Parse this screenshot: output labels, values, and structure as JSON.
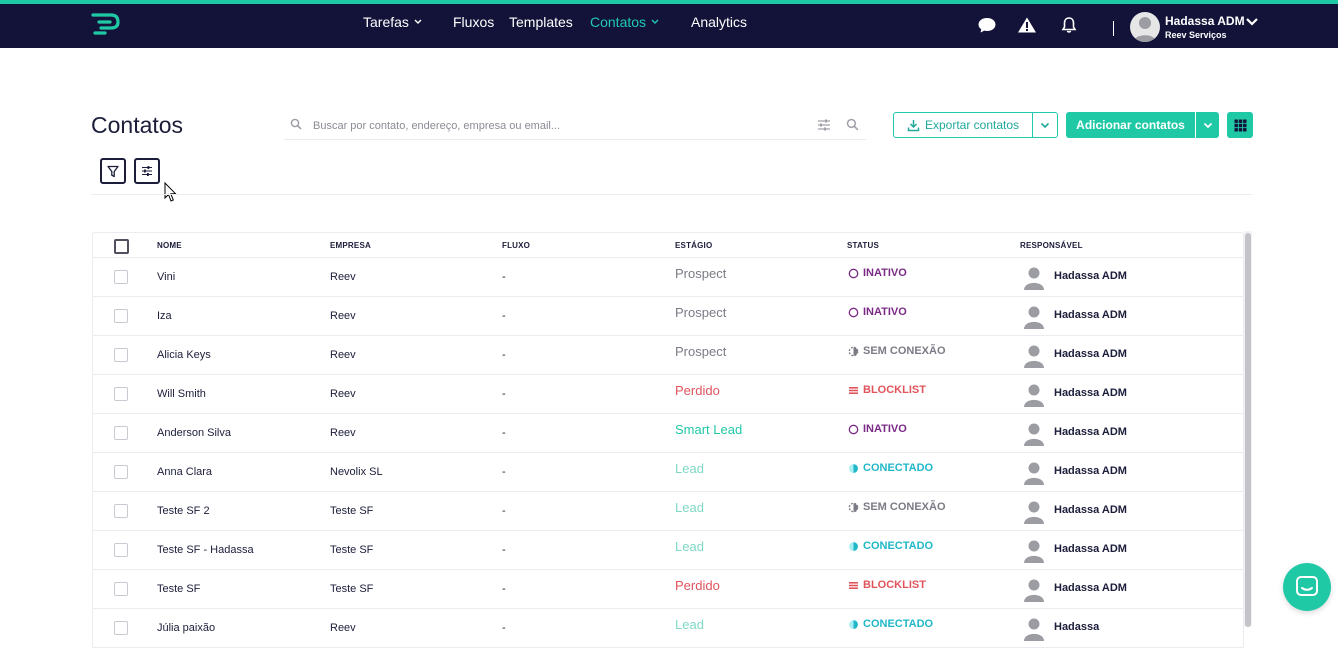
{
  "nav": {
    "items": [
      {
        "label": "Tarefas",
        "has_caret": true,
        "active": false
      },
      {
        "label": "Fluxos",
        "has_caret": false,
        "active": false
      },
      {
        "label": "Templates",
        "has_caret": false,
        "active": false
      },
      {
        "label": "Contatos",
        "has_caret": true,
        "active": true
      },
      {
        "label": "Analytics",
        "has_caret": false,
        "active": false
      }
    ],
    "icons": [
      "chat-icon",
      "alert-icon",
      "bell-icon"
    ],
    "user": {
      "name": "Hadassa ADM",
      "org": "Reev Serviços"
    }
  },
  "page": {
    "title": "Contatos",
    "search_placeholder": "Buscar por contato, endereço, empresa ou email...",
    "export_label": "Exportar contatos",
    "add_label": "Adicionar contatos"
  },
  "table": {
    "headers": [
      "NOME",
      "EMPRESA",
      "FLUXO",
      "ESTÁGIO",
      "STATUS",
      "RESPONSÁVEL"
    ],
    "rows": [
      {
        "name": "Vini",
        "company": "Reev",
        "flow": "-",
        "stage": "Prospect",
        "status": "INATIVO",
        "owner": "Hadassa ADM"
      },
      {
        "name": "Iza",
        "company": "Reev",
        "flow": "-",
        "stage": "Prospect",
        "status": "INATIVO",
        "owner": "Hadassa ADM"
      },
      {
        "name": "Alicia Keys",
        "company": "Reev",
        "flow": "-",
        "stage": "Prospect",
        "status": "SEM CONEXÃO",
        "owner": "Hadassa ADM"
      },
      {
        "name": "Will Smith",
        "company": "Reev",
        "flow": "-",
        "stage": "Perdido",
        "status": "BLOCKLIST",
        "owner": "Hadassa ADM"
      },
      {
        "name": "Anderson Silva",
        "company": "Reev",
        "flow": "-",
        "stage": "Smart Lead",
        "status": "INATIVO",
        "owner": "Hadassa ADM"
      },
      {
        "name": "Anna Clara",
        "company": "Nevolix SL",
        "flow": "-",
        "stage": "Lead",
        "status": "CONECTADO",
        "owner": "Hadassa ADM"
      },
      {
        "name": "Teste SF 2",
        "company": "Teste SF",
        "flow": "-",
        "stage": "Lead",
        "status": "SEM CONEXÃO",
        "owner": "Hadassa ADM"
      },
      {
        "name": "Teste SF - Hadassa",
        "company": "Teste SF",
        "flow": "-",
        "stage": "Lead",
        "status": "CONECTADO",
        "owner": "Hadassa ADM"
      },
      {
        "name": "Teste SF",
        "company": "Teste SF",
        "flow": "-",
        "stage": "Perdido",
        "status": "BLOCKLIST",
        "owner": "Hadassa ADM"
      },
      {
        "name": "Júlia paixão",
        "company": "Reev",
        "flow": "-",
        "stage": "Lead",
        "status": "CONECTADO",
        "owner": "Hadassa"
      }
    ]
  },
  "colors": {
    "navbar": "#13133a",
    "accent": "#20c9a6",
    "stage_prospect": "#7b7b86",
    "stage_perdido": "#e0545c",
    "stage_smart_lead": "#20c9a6",
    "stage_lead": "#7fd9c6",
    "status_inativo": "#7b2a86",
    "status_sem_conexao": "#7b7b86",
    "status_blocklist": "#e0545c",
    "status_conectado": "#20b8c9"
  }
}
